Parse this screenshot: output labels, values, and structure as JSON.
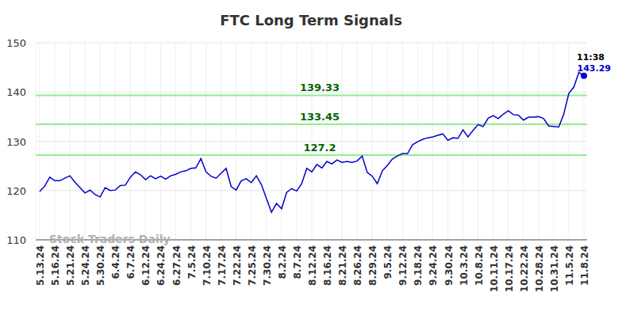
{
  "chart_data": {
    "type": "line",
    "title": "FTC Long Term Signals",
    "watermark": "Stock Traders Daily",
    "categories": [
      "5.13.24",
      null,
      null,
      "5.16.24",
      null,
      null,
      "5.21.24",
      null,
      null,
      "5.24.24",
      null,
      null,
      "5.30.24",
      null,
      null,
      "6.4.24",
      null,
      null,
      "6.7.24",
      null,
      null,
      "6.12.24",
      null,
      null,
      "6.24.24",
      null,
      null,
      "6.27.24",
      null,
      null,
      "7.5.24",
      null,
      null,
      "7.10.24",
      null,
      null,
      "7.17.24",
      null,
      null,
      "7.22.24",
      null,
      null,
      "7.25.24",
      null,
      null,
      "7.30.24",
      null,
      null,
      "8.2.24",
      null,
      null,
      "8.7.24",
      null,
      null,
      "8.12.24",
      null,
      null,
      "8.16.24",
      null,
      null,
      "8.21.24",
      null,
      null,
      "8.26.24",
      null,
      null,
      "8.29.24",
      null,
      null,
      "9.5.24",
      null,
      null,
      "9.12.24",
      null,
      null,
      "9.18.24",
      null,
      null,
      "9.24.24",
      null,
      null,
      "9.30.24",
      null,
      null,
      "10.3.24",
      null,
      null,
      "10.8.24",
      null,
      null,
      "10.11.24",
      null,
      null,
      "10.17.24",
      null,
      null,
      "10.22.24",
      null,
      null,
      "10.28.24",
      null,
      null,
      "10.31.24",
      null,
      null,
      "11.5.24",
      null,
      null,
      "11.8.24"
    ],
    "values": [
      119.8,
      120.9,
      122.7,
      122.0,
      122.0,
      122.5,
      123.0,
      121.7,
      120.6,
      119.5,
      120.1,
      119.2,
      118.7,
      120.6,
      120.0,
      120.1,
      121.0,
      121.1,
      122.7,
      123.8,
      123.2,
      122.2,
      123.0,
      122.4,
      122.9,
      122.3,
      123.0,
      123.3,
      123.8,
      124.0,
      124.5,
      124.6,
      126.5,
      123.8,
      122.9,
      122.5,
      123.5,
      124.5,
      120.8,
      120.1,
      122.0,
      122.4,
      121.6,
      123.0,
      121.2,
      118.4,
      115.6,
      117.4,
      116.3,
      119.6,
      120.4,
      119.9,
      121.4,
      124.5,
      123.8,
      125.3,
      124.6,
      125.9,
      125.4,
      126.2,
      125.7,
      125.9,
      125.7,
      126.0,
      127.0,
      123.7,
      122.9,
      121.4,
      124.0,
      125.1,
      126.4,
      127.0,
      127.5,
      127.5,
      129.3,
      129.9,
      130.4,
      130.7,
      130.9,
      131.2,
      131.5,
      130.2,
      130.7,
      130.6,
      132.3,
      130.9,
      132.2,
      133.4,
      133.0,
      134.7,
      135.2,
      134.6,
      135.5,
      136.2,
      135.4,
      135.3,
      134.3,
      134.9,
      134.9,
      135.0,
      134.6,
      133.1,
      133.0,
      132.9,
      135.5,
      139.7,
      141.0,
      144.0,
      143.29
    ],
    "color": "#0000cc",
    "reference_lines": [
      139.33,
      133.45,
      127.2
    ],
    "last_label": "11:38",
    "ylim": [
      110,
      150
    ],
    "yticks": [
      110,
      120,
      130,
      140,
      150
    ],
    "grid": true
  }
}
